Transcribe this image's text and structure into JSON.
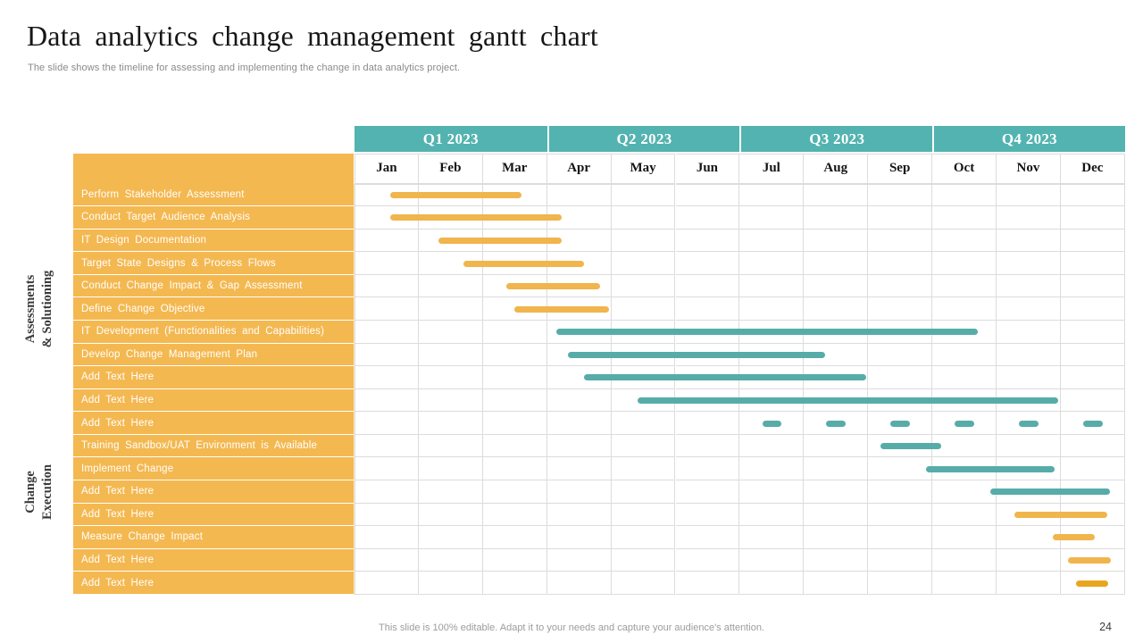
{
  "slide": {
    "title": "Data analytics change management gantt chart",
    "subtitle": "The slide shows the timeline for assessing and implementing the change in data analytics project.",
    "footer_note": "This slide is 100% editable. Adapt it to your needs and capture your audience's attention.",
    "page_number": "24"
  },
  "colors": {
    "header_teal": "#53B3B0",
    "label_orange": "#F4B851",
    "grid_line": "#DCDCDC",
    "bars": {
      "orange": "#F0B54D",
      "teal": "#57ACA9",
      "amber": "#E8A61F"
    }
  },
  "chart_data": {
    "type": "gantt",
    "title": "Data analytics change management gantt chart",
    "axis": {
      "quarters": [
        "Q1 2023",
        "Q2 2023",
        "Q3 2023",
        "Q4 2023"
      ],
      "months": [
        "Jan",
        "Feb",
        "Mar",
        "Apr",
        "May",
        "Jun",
        "Jul",
        "Aug",
        "Sep",
        "Oct",
        "Nov",
        "Dec"
      ],
      "month_range": [
        0,
        12
      ]
    },
    "groups": [
      {
        "label": "Assessments\n& Solutioning",
        "center_row": 5.5
      },
      {
        "label": "Change\nExecution",
        "center_row": 13.5
      }
    ],
    "tasks": [
      {
        "label": "Perform Stakeholder Assessment",
        "color": "orange",
        "bars": [
          [
            0.55,
            2.6
          ]
        ]
      },
      {
        "label": "Conduct Target Audience Analysis",
        "color": "orange",
        "bars": [
          [
            0.56,
            3.22
          ]
        ]
      },
      {
        "label": "IT Design Documentation",
        "color": "orange",
        "bars": [
          [
            1.31,
            3.22
          ]
        ]
      },
      {
        "label": "Target State Designs & Process Flows",
        "color": "orange",
        "bars": [
          [
            1.69,
            3.58
          ]
        ]
      },
      {
        "label": "Conduct Change Impact & Gap Assessment",
        "color": "orange",
        "bars": [
          [
            2.36,
            3.83
          ]
        ]
      },
      {
        "label": "Define Change Objective",
        "color": "orange",
        "bars": [
          [
            2.49,
            3.96
          ]
        ]
      },
      {
        "label": "IT Development (Functionalities and Capabilities)",
        "color": "teal",
        "bars": [
          [
            3.14,
            9.71
          ]
        ]
      },
      {
        "label": "Develop Change Management Plan",
        "color": "teal",
        "bars": [
          [
            3.32,
            7.33
          ]
        ]
      },
      {
        "label": "Add Text Here",
        "color": "teal",
        "bars": [
          [
            3.57,
            7.97
          ]
        ]
      },
      {
        "label": "Add Text Here",
        "color": "teal",
        "bars": [
          [
            4.41,
            10.96
          ]
        ]
      },
      {
        "label": "Add Text Here",
        "color": "teal",
        "bars": [
          [
            6.35,
            6.65
          ],
          [
            7.35,
            7.65
          ],
          [
            8.35,
            8.65
          ],
          [
            9.35,
            9.65
          ],
          [
            10.35,
            10.65
          ],
          [
            11.35,
            11.65
          ]
        ]
      },
      {
        "label": "Training Sandbox/UAT Environment is Available",
        "color": "teal",
        "bars": [
          [
            8.19,
            9.14
          ]
        ]
      },
      {
        "label": "Implement Change",
        "color": "teal",
        "bars": [
          [
            8.9,
            10.9
          ]
        ]
      },
      {
        "label": "Add Text Here",
        "color": "teal",
        "bars": [
          [
            9.9,
            11.76
          ]
        ]
      },
      {
        "label": "Add Text Here",
        "color": "orange",
        "bars": [
          [
            10.28,
            11.72
          ]
        ]
      },
      {
        "label": "Measure Change Impact",
        "color": "orange",
        "bars": [
          [
            10.87,
            11.53
          ]
        ]
      },
      {
        "label": "Add Text Here",
        "color": "orange",
        "bars": [
          [
            11.11,
            11.78
          ]
        ]
      },
      {
        "label": "Add Text Here",
        "color": "amber",
        "bars": [
          [
            11.24,
            11.74
          ]
        ]
      }
    ]
  }
}
